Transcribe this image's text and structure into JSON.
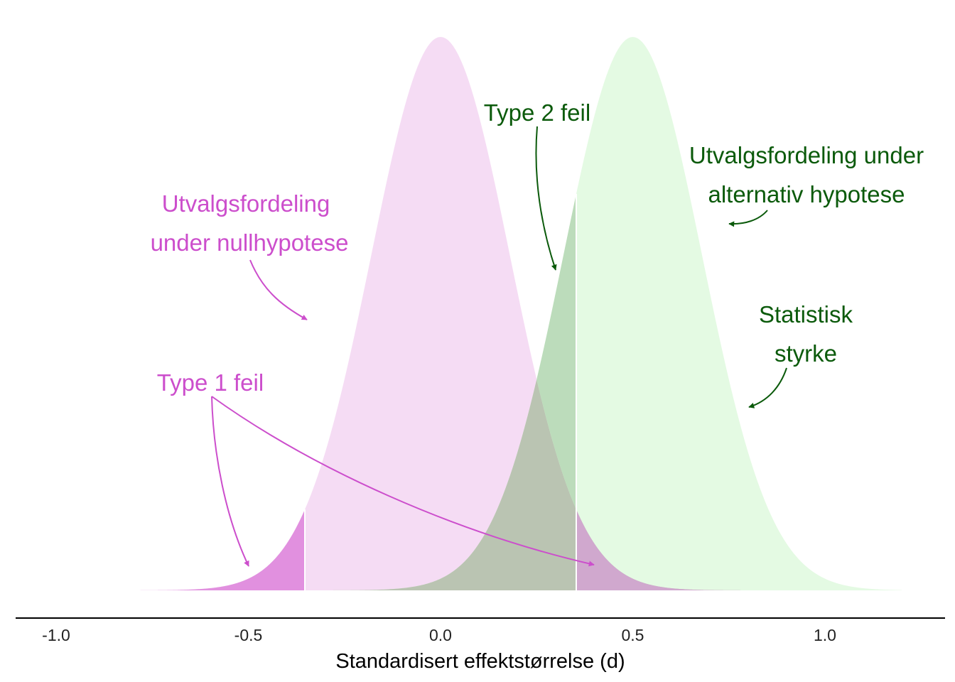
{
  "colors": {
    "null_fill": "#f5dcf4",
    "null_tail": "#e190df",
    "alt_fill": "#e4fae3",
    "overlap": "#bac4b2",
    "alt_overlap_upper": "#bcdcbb",
    "null_over_alt_tail": "#d0a8ce",
    "magenta_text": "#cc4ecc",
    "green_text": "#0b5a0b"
  },
  "chart_data": {
    "type": "area",
    "title": "",
    "xlabel": "Standardisert effektstørrelse (d)",
    "ylabel": "",
    "xlim": [
      -1.1,
      1.3
    ],
    "x_ticks": [
      -1.0,
      -0.5,
      0.0,
      0.5,
      1.0
    ],
    "x_tick_labels": [
      "-1.0",
      "-0.5",
      "0.0",
      "0.5",
      "1.0"
    ],
    "y_axis_shown": false,
    "grid": false,
    "series": [
      {
        "mean": 0.0,
        "sd": 0.18,
        "x_range": [
          -0.8,
          0.8
        ]
      },
      {
        "mean": 0.5,
        "sd": 0.18,
        "x_range": [
          -0.3,
          1.2
        ]
      }
    ],
    "critical_values": [
      -0.353,
      0.353
    ],
    "annotations": {
      "null_dist": [
        "Utvalgsfordeling",
        "under nullhypotese"
      ],
      "alt_dist": [
        "Utvalgsfordeling under",
        "alternativ hypotese"
      ],
      "type1": "Type 1 feil",
      "type2": "Type 2 feil",
      "power": [
        "Statistisk",
        "styrke"
      ]
    }
  }
}
